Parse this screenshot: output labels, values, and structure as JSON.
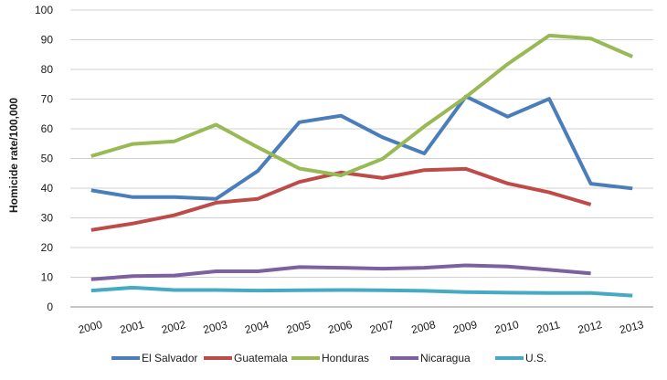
{
  "chart_data": {
    "type": "line",
    "title": "",
    "xlabel": "",
    "ylabel": "Homicide rate/100,000",
    "ylim": [
      0,
      100
    ],
    "yticks": [
      0,
      10,
      20,
      30,
      40,
      50,
      60,
      70,
      80,
      90,
      100
    ],
    "x": [
      "2000",
      "2001",
      "2002",
      "2003",
      "2004",
      "2005",
      "2006",
      "2007",
      "2008",
      "2009",
      "2010",
      "2011",
      "2012",
      "2013"
    ],
    "grid": true,
    "legend_position": "bottom",
    "series": [
      {
        "name": "El Salvador",
        "color": "#4a7ebb",
        "values": [
          39.3,
          37.0,
          37.0,
          36.4,
          45.8,
          62.2,
          64.4,
          57.1,
          51.7,
          70.9,
          64.1,
          70.1,
          41.5,
          39.9
        ]
      },
      {
        "name": "Guatemala",
        "color": "#be4b48",
        "values": [
          25.9,
          28.1,
          30.9,
          35.1,
          36.4,
          42.1,
          45.3,
          43.4,
          46.1,
          46.5,
          41.6,
          38.6,
          34.5,
          null
        ]
      },
      {
        "name": "Honduras",
        "color": "#98b954",
        "values": [
          50.8,
          54.9,
          55.8,
          61.4,
          53.8,
          46.6,
          44.3,
          49.9,
          60.8,
          70.7,
          81.8,
          91.4,
          90.4,
          84.3
        ]
      },
      {
        "name": "Nicaragua",
        "color": "#7d60a0",
        "values": [
          9.3,
          10.4,
          10.6,
          12.0,
          12.0,
          13.4,
          13.2,
          12.9,
          13.2,
          14.0,
          13.6,
          12.5,
          11.3,
          null
        ]
      },
      {
        "name": "U.S.",
        "color": "#46aac5",
        "values": [
          5.5,
          6.5,
          5.7,
          5.7,
          5.5,
          5.6,
          5.7,
          5.6,
          5.4,
          5.0,
          4.8,
          4.7,
          4.7,
          3.8
        ]
      }
    ]
  }
}
